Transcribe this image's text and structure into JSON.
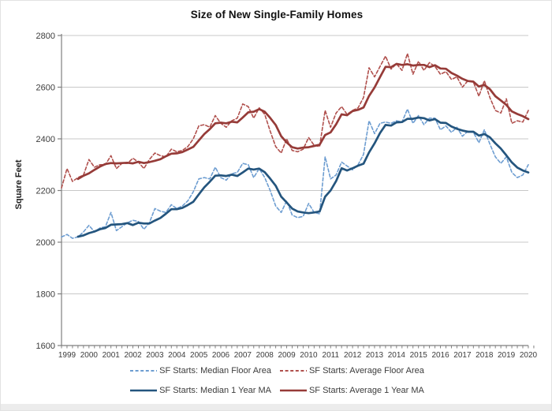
{
  "chart_data": {
    "type": "line",
    "title": "Size of New Single-Family Homes",
    "xlabel": "",
    "ylabel": "Square Feet",
    "ylim": [
      1600,
      2800
    ],
    "yticks": [
      1600,
      1800,
      2000,
      2200,
      2400,
      2600,
      2800
    ],
    "xticks": [
      "1999",
      "2000",
      "2001",
      "2002",
      "2003",
      "2004",
      "2005",
      "2006",
      "2007",
      "2008",
      "2009",
      "2010",
      "2011",
      "2012",
      "2013",
      "2014",
      "2015",
      "2016",
      "2017",
      "2018",
      "2019",
      "2020"
    ],
    "x_start_year": 1999,
    "points_per_year": 4,
    "grid": "horizontal-only",
    "legend_position": "bottom",
    "axis_color": "#7f7f7f",
    "gridline_color": "#c8c8c8",
    "tick_label_color": "#3c3c3c",
    "series": [
      {
        "name": "SF Starts: Median Floor Area",
        "style": "dashed",
        "color": "#6d9dd1",
        "unit": "square feet",
        "frequency": "quarterly 1999Q1-2020Q2",
        "values": [
          2020,
          2030,
          2015,
          2020,
          2040,
          2065,
          2040,
          2055,
          2060,
          2115,
          2045,
          2060,
          2075,
          2085,
          2080,
          2050,
          2075,
          2130,
          2120,
          2115,
          2145,
          2130,
          2140,
          2160,
          2195,
          2245,
          2250,
          2245,
          2290,
          2250,
          2240,
          2265,
          2270,
          2305,
          2300,
          2250,
          2285,
          2250,
          2200,
          2140,
          2115,
          2160,
          2105,
          2095,
          2100,
          2150,
          2115,
          2110,
          2330,
          2245,
          2260,
          2310,
          2295,
          2280,
          2300,
          2340,
          2470,
          2420,
          2460,
          2465,
          2460,
          2470,
          2465,
          2515,
          2460,
          2490,
          2455,
          2480,
          2480,
          2435,
          2450,
          2425,
          2445,
          2410,
          2430,
          2425,
          2385,
          2435,
          2380,
          2330,
          2305,
          2330,
          2270,
          2250,
          2260,
          2300
        ]
      },
      {
        "name": "SF Starts: Average Floor Area",
        "style": "dashed",
        "color": "#b0504d",
        "unit": "square feet",
        "frequency": "quarterly 1999Q1-2020Q2",
        "values": [
          2210,
          2285,
          2235,
          2250,
          2260,
          2320,
          2290,
          2300,
          2300,
          2335,
          2285,
          2305,
          2305,
          2325,
          2310,
          2285,
          2320,
          2345,
          2335,
          2330,
          2360,
          2350,
          2355,
          2370,
          2400,
          2450,
          2455,
          2445,
          2490,
          2460,
          2445,
          2470,
          2480,
          2535,
          2525,
          2480,
          2520,
          2495,
          2430,
          2370,
          2345,
          2400,
          2355,
          2350,
          2360,
          2405,
          2375,
          2370,
          2510,
          2445,
          2500,
          2525,
          2495,
          2510,
          2520,
          2560,
          2675,
          2640,
          2680,
          2720,
          2670,
          2690,
          2665,
          2730,
          2650,
          2700,
          2665,
          2695,
          2680,
          2650,
          2660,
          2630,
          2640,
          2600,
          2625,
          2620,
          2565,
          2625,
          2560,
          2510,
          2500,
          2555,
          2460,
          2470,
          2465,
          2510
        ]
      },
      {
        "name": "SF Starts: Median 1 Year MA",
        "style": "solid",
        "color": "#24557e",
        "derived_from": 0,
        "moving_average_window": 4
      },
      {
        "name": "SF Starts: Average 1 Year MA",
        "style": "solid",
        "color": "#963b38",
        "derived_from": 1,
        "moving_average_window": 4
      }
    ]
  }
}
